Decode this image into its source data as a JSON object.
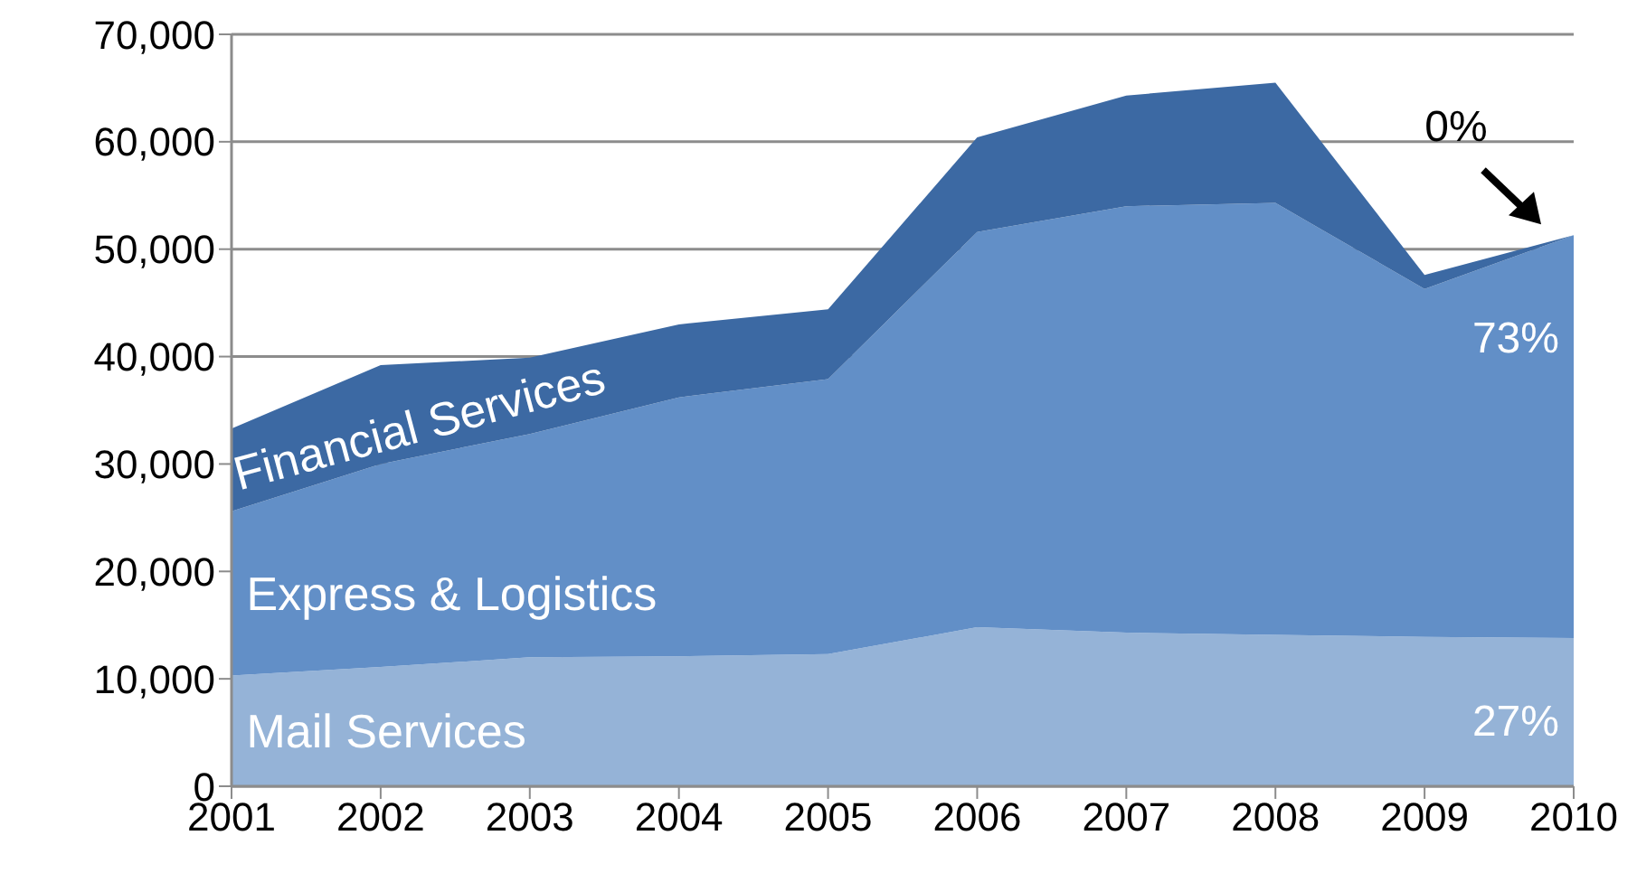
{
  "chart_data": {
    "type": "area",
    "stacked": true,
    "categories": [
      "2001",
      "2002",
      "2003",
      "2004",
      "2005",
      "2006",
      "2007",
      "2008",
      "2009",
      "2010"
    ],
    "series": [
      {
        "name": "Mail Services",
        "color": "#95b3d7",
        "values": [
          10300,
          11100,
          12000,
          12100,
          12300,
          14800,
          14300,
          14100,
          13900,
          13800
        ]
      },
      {
        "name": "Express & Logistics",
        "color": "#628fc7",
        "values": [
          15300,
          18900,
          20800,
          24100,
          25600,
          36800,
          39700,
          40200,
          32400,
          37500
        ]
      },
      {
        "name": "Financial Services",
        "color": "#3c69a3",
        "values": [
          7700,
          9200,
          7100,
          6800,
          6500,
          8800,
          10300,
          11200,
          1300,
          0
        ]
      }
    ],
    "ylim": [
      0,
      70000
    ],
    "yticks": [
      0,
      {
        "value": 10000,
        "label": "10,000"
      },
      {
        "value": 20000,
        "label": "20,000"
      },
      {
        "value": 30000,
        "label": "30,000"
      },
      {
        "value": 40000,
        "label": "40,000"
      },
      {
        "value": 50000,
        "label": "50,000"
      },
      {
        "value": 60000,
        "label": "60,000"
      },
      {
        "value": 70000,
        "label": "70,000"
      }
    ],
    "grid": "y",
    "annotations": [
      {
        "text": "0%",
        "x": "2010",
        "y": 51300
      },
      "73%",
      "27%"
    ]
  }
}
